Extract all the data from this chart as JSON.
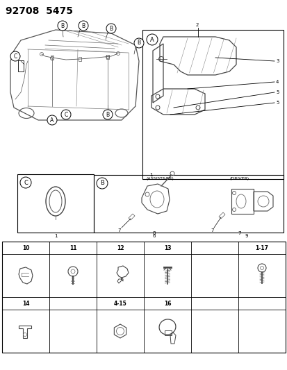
{
  "title": "92708  5475",
  "bg_color": "#ffffff",
  "fig_width": 4.14,
  "fig_height": 5.33,
  "dpi": 100,
  "title_fontsize": 10,
  "label_fontsize": 6.0,
  "small_fontsize": 5.0,
  "grid_labels_row1": [
    "10",
    "11",
    "12",
    "13",
    "",
    "1-17"
  ],
  "grid_labels_row2": [
    "14",
    "",
    "4-15",
    "16",
    "",
    ""
  ]
}
